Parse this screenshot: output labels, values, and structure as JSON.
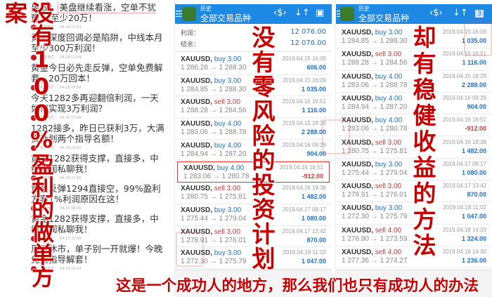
{
  "posts": [
    {
      "title_pre": "果敢！",
      "title_hl": "美盘继续看涨，空单不犹豫",
      "title_post": "，至少20万！",
      "source": "名家专栏",
      "time": "04-18 17:03"
    },
    {
      "title": "黄金深度回调必是陷阱，中线本月至少300万利润！",
      "source": "名家专栏",
      "time": "04-18 13:09"
    },
    {
      "title": "黄金今日必先走反弹，空单免费解套，20万回本！",
      "source": "名家专栏",
      "time": "04-18 08:08"
    },
    {
      "title": "今天1282多再迎翻倍利润，一天如何实现3万利润？",
      "source": "名家专栏",
      "time": "04-16 17:40"
    },
    {
      "title": "1282接多，昨日已获利3万，大满贯计划两个指导名额！",
      "source": "名家专栏",
      "time": "04-16 13:21"
    },
    {
      "title": "黄金1282获得支撑，直接多，中线利润私聊我！",
      "source": "名家专栏",
      "time": "04-15 21:55"
    },
    {
      "title": "黄金反弹1294直接空，99%盈利方案1%利润原因在这！",
      "source": "名家专栏",
      "time": "04-15 08:41"
    },
    {
      "title": "黄金1282获得支撑，直接多，中线利润私聊我！",
      "source": "名家专栏",
      "time": "04-15 21:55"
    },
    {
      "title": "周五休市，单子别一开就爆！今晚免费指导解套！",
      "source": "名家专栏",
      "time": "04-18 21:24"
    }
  ],
  "app": {
    "subtitle": "历史",
    "title": "全部交易品种",
    "icons": [
      "menu-icon",
      "app-logo-icon",
      "currency-icon",
      "sort-icon",
      "calendar-icon"
    ],
    "calendar_day": "3",
    "profit_label": "利润：",
    "profit_value": "12 076.00",
    "balance_label": "结余：",
    "balance_value": "12 076.00",
    "accent": "#1e88e5"
  },
  "mid_trades": [
    {
      "symbol": "XAUUSD,",
      "side": "buy",
      "lots": "3.00",
      "open": "1 286.28",
      "close": "1 288.30",
      "time": "2019.04.15 16:09",
      "pl": "606.00"
    },
    {
      "symbol": "XAUUSD,",
      "side": "buy",
      "lots": "3.00",
      "open": "1 284.85",
      "close": "1 288.30",
      "time": "2019.04.15 16:09",
      "pl": "1 035.00"
    },
    {
      "symbol": "XAUUSD,",
      "side": "sell",
      "lots": "3.00",
      "open": "1 288.28",
      "close": "1 284.56",
      "time": "2019.04.15 16:51",
      "pl": "1 116.00"
    },
    {
      "symbol": "XAUUSD,",
      "side": "buy",
      "lots": "4.00",
      "open": "1 283.06",
      "close": "1 288.78",
      "time": "2019.04.15 18:29",
      "pl": "2 288.00"
    },
    {
      "symbol": "XAUUSD,",
      "side": "buy",
      "lots": "4.00",
      "open": "1 284.94",
      "close": "1 287.20",
      "time": "2019.04.16 09:29",
      "pl": "904.00"
    },
    {
      "symbol": "XAUUSD,",
      "side": "buy",
      "lots": "4.00",
      "open": "1 283.06",
      "close": "1 280.78",
      "time": "2019.04.16 16:51",
      "pl": "-912.00",
      "marked": true
    },
    {
      "symbol": "XAUUSD,",
      "side": "sell",
      "lots": "3.00",
      "open": "1 280.75",
      "close": "1 275.81",
      "time": "2019.04.16 19:38",
      "pl": "1 482.00"
    },
    {
      "symbol": "XAUUSD,",
      "side": "buy",
      "lots": "3.00",
      "open": "1 275.44",
      "close": "1 279.04",
      "time": "2019.04.17 08:17",
      "pl": "1 080.00"
    },
    {
      "symbol": "XAUUSD,",
      "side": "sell",
      "lots": "3.00",
      "open": "1 278.91",
      "close": "1 276.01",
      "time": "2019.04.17 13:42",
      "pl": "870.00"
    },
    {
      "symbol": "XAUUSD,",
      "side": "buy",
      "lots": "3.00",
      "open": "1 272.30",
      "close": "1 275.79",
      "time": "2019.04.18 11:02",
      "pl": "1 047.00"
    }
  ],
  "right_trades": [
    {
      "symbol": "XAUUSD,",
      "side": "buy",
      "lots": "3.00",
      "open": "1 284.85",
      "close": "1 288.30",
      "time": "2019.04.15 16:09",
      "pl": "1 035.00"
    },
    {
      "symbol": "XAUUSD,",
      "side": "sell",
      "lots": "3.00",
      "open": "1 288.28",
      "close": "1 284.56",
      "time": "2019.04.15 16:51",
      "pl": "1 116.00"
    },
    {
      "symbol": "XAUUSD,",
      "side": "buy",
      "lots": "4.00",
      "open": "1 283.06",
      "close": "1 288.78",
      "time": "2019.04.15 18:29",
      "pl": "2 288.00"
    },
    {
      "symbol": "XAUUSD,",
      "side": "buy",
      "lots": "4.00",
      "open": "1 284.94",
      "close": "1 287.20",
      "time": "2019.04.16 09:29",
      "pl": "904.00"
    },
    {
      "symbol": "XAUUSD,",
      "side": "buy",
      "lots": "4.00",
      "open": "1 283.06",
      "close": "1 280.78",
      "time": "2019.04.16 16:51",
      "pl": "-912.00"
    },
    {
      "symbol": "XAUUSD,",
      "side": "sell",
      "lots": "3.00",
      "open": "1 280.75",
      "close": "1 275.81",
      "time": "2019.04.16 19:38",
      "pl": "1 482.00"
    },
    {
      "symbol": "XAUUSD,",
      "side": "buy",
      "lots": "3.00",
      "open": "1 275.44",
      "close": "1 279.04",
      "time": "2019.04.17 08:17",
      "pl": "1 080.00"
    },
    {
      "symbol": "XAUUSD,",
      "side": "sell",
      "lots": "3.00",
      "open": "1 278.91",
      "close": "1 276.01",
      "time": "2019.04.17 13:42",
      "pl": "870.00"
    },
    {
      "symbol": "XAUUSD,",
      "side": "buy",
      "lots": "3.00",
      "open": "1 272.30",
      "close": "1 275.79",
      "time": "2019.04.18 11:02",
      "pl": "1 047.00"
    },
    {
      "symbol": "XAUUSD,",
      "side": "sell",
      "lots": "4.00",
      "open": "1 276.90",
      "close": "1 273.59",
      "time": "2019.04.18 14:33",
      "pl": "1 324.00"
    },
    {
      "symbol": "XAUUSD,",
      "side": "sell",
      "lots": "4.00",
      "open": "1 277.36",
      "close": "1 274.27",
      "time": "2019.04.18 14:30",
      "pl": "1 236.00"
    }
  ],
  "overlay": {
    "left": "没有100%盈利的做单方案",
    "middle": "没有零风险的投资计划",
    "right": "却有稳健收益的方法",
    "bottom": "这是一个成功人的地方，那么我们也只有成功人的办法",
    "color": "#c40000"
  }
}
